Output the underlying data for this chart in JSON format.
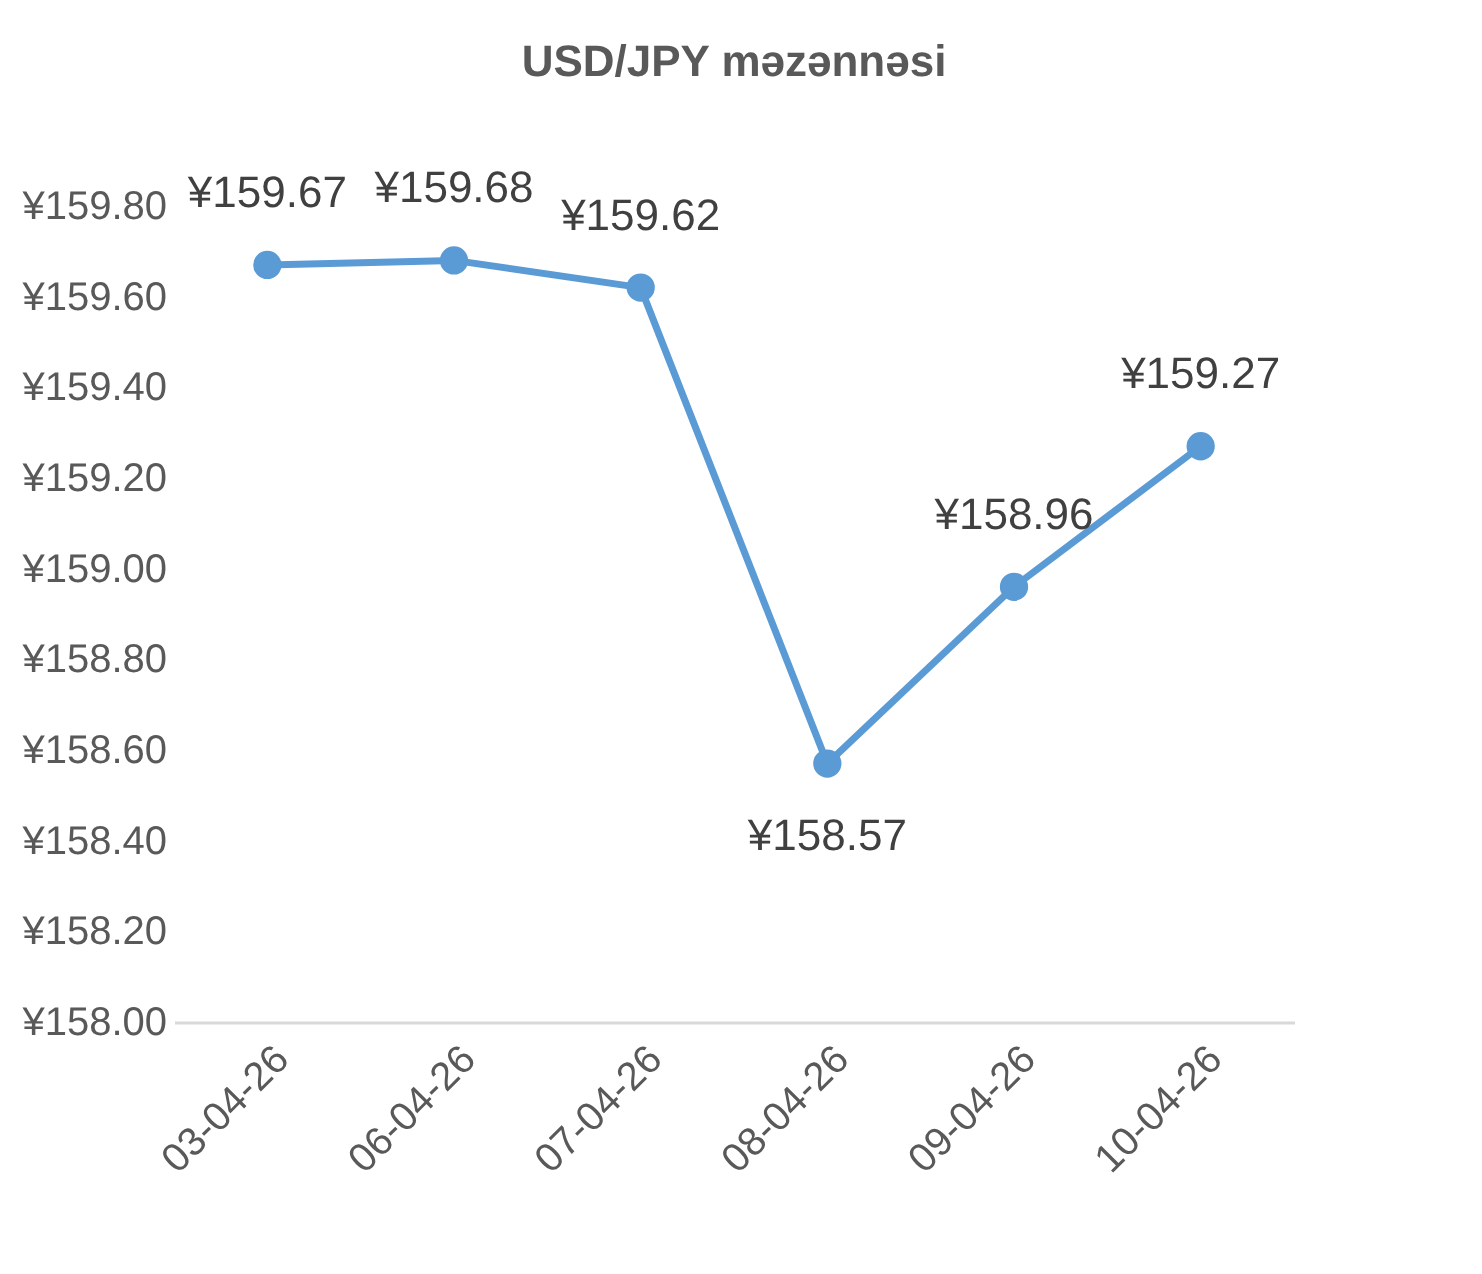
{
  "chart_data": {
    "type": "line",
    "title": "USD/JPY məzənnəsi",
    "categories": [
      "03-04-26",
      "06-04-26",
      "07-04-26",
      "08-04-26",
      "09-04-26",
      "10-04-26"
    ],
    "series": [
      {
        "color": "#5b9bd5",
        "values": [
          159.67,
          159.68,
          159.62,
          158.57,
          158.96,
          159.27
        ],
        "value_labels": [
          "¥159.67",
          "¥159.68",
          "¥159.62",
          "¥158.57",
          "¥158.96",
          "¥159.27"
        ]
      }
    ],
    "ylim": [
      158,
      159.8
    ],
    "yticks": [
      {
        "value": 158,
        "label": "¥158.00"
      },
      {
        "value": 158.2,
        "label": "¥158.20"
      },
      {
        "value": 158.4,
        "label": "¥158.40"
      },
      {
        "value": 158.6,
        "label": "¥158.60"
      },
      {
        "value": 158.8,
        "label": "¥158.80"
      },
      {
        "value": 159,
        "label": "¥159.00"
      },
      {
        "value": 159.2,
        "label": "¥159.20"
      },
      {
        "value": 159.4,
        "label": "¥159.40"
      },
      {
        "value": 159.6,
        "label": "¥159.60"
      },
      {
        "value": 159.8,
        "label": "¥159.80"
      }
    ],
    "marker": "circle",
    "line_style": "solid"
  }
}
